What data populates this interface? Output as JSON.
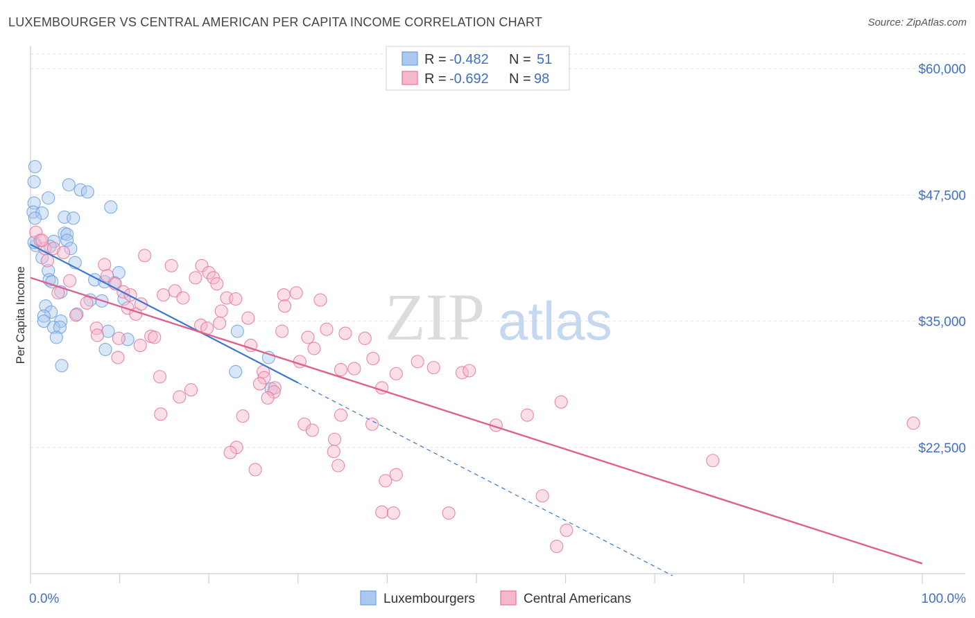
{
  "header": {
    "title": "LUXEMBOURGER VS CENTRAL AMERICAN PER CAPITA INCOME CORRELATION CHART",
    "source": "Source: ZipAtlas.com"
  },
  "watermark": {
    "zip": "ZIP",
    "atlas": "atlas"
  },
  "legend": {
    "rows": [
      {
        "r_label": "R = ",
        "r_value": "-0.482",
        "n_label": "N = ",
        "n_value": "51",
        "color": "#aac8f0"
      },
      {
        "r_label": "R = ",
        "r_value": "-0.692",
        "n_label": "N = ",
        "n_value": "98",
        "color": "#f7b8cc"
      }
    ]
  },
  "chart_data": {
    "type": "scatter",
    "title": "LUXEMBOURGER VS CENTRAL AMERICAN PER CAPITA INCOME CORRELATION CHART",
    "xlabel": "",
    "ylabel": "Per Capita Income",
    "xlim": [
      0,
      100
    ],
    "ylim": [
      10000,
      62000
    ],
    "x_tick_labels": [
      "0.0%",
      "100.0%"
    ],
    "y_ticks": [
      22500,
      35000,
      47500,
      60000
    ],
    "y_tick_labels": [
      "$22,500",
      "$35,000",
      "$47,500",
      "$60,000"
    ],
    "grid": true,
    "legend_placement": "top-center",
    "series": [
      {
        "name": "Luxembourgers",
        "color": "#6a9fe0",
        "fill": "#aac8f0",
        "trend": {
          "x0": 0,
          "y0": 42600,
          "x1": 30,
          "y1": 28900,
          "dash_to_x": 72,
          "dash_to_y": 9800
        },
        "points": [
          [
            0.5,
            50300
          ],
          [
            0.4,
            48800
          ],
          [
            4.3,
            48500
          ],
          [
            5.6,
            48000
          ],
          [
            6.4,
            47800
          ],
          [
            2.0,
            47200
          ],
          [
            0.4,
            46700
          ],
          [
            9.0,
            46300
          ],
          [
            0.3,
            45800
          ],
          [
            1.3,
            45700
          ],
          [
            0.5,
            45200
          ],
          [
            3.8,
            45300
          ],
          [
            4.8,
            45200
          ],
          [
            3.8,
            43700
          ],
          [
            4.1,
            43600
          ],
          [
            2.6,
            42900
          ],
          [
            0.6,
            42500
          ],
          [
            4.1,
            43000
          ],
          [
            4.5,
            42200
          ],
          [
            1.3,
            41300
          ],
          [
            5.0,
            40800
          ],
          [
            9.9,
            39800
          ],
          [
            2.0,
            40000
          ],
          [
            7.2,
            39100
          ],
          [
            2.1,
            39100
          ],
          [
            2.4,
            38900
          ],
          [
            8.3,
            38900
          ],
          [
            9.4,
            38800
          ],
          [
            3.4,
            37900
          ],
          [
            10.5,
            37200
          ],
          [
            6.7,
            37100
          ],
          [
            8.0,
            37000
          ],
          [
            1.7,
            36500
          ],
          [
            2.3,
            35900
          ],
          [
            5.2,
            35700
          ],
          [
            1.5,
            35500
          ],
          [
            3.4,
            35000
          ],
          [
            1.5,
            35000
          ],
          [
            2.6,
            34400
          ],
          [
            3.3,
            34400
          ],
          [
            8.7,
            34000
          ],
          [
            23.2,
            34000
          ],
          [
            2.9,
            33400
          ],
          [
            10.9,
            33200
          ],
          [
            8.4,
            32200
          ],
          [
            26.7,
            31400
          ],
          [
            3.5,
            30600
          ],
          [
            23.0,
            30000
          ],
          [
            27.0,
            28300
          ],
          [
            0.4,
            42800
          ],
          [
            2.2,
            42400
          ]
        ]
      },
      {
        "name": "Central Americans",
        "color": "#e8729a",
        "fill": "#f7b8cc",
        "trend": {
          "x0": 0,
          "y0": 39300,
          "x1": 100,
          "y1": 11000
        },
        "points": [
          [
            0.6,
            43800
          ],
          [
            1.6,
            42200
          ],
          [
            1.1,
            43000
          ],
          [
            2.6,
            42200
          ],
          [
            3.7,
            41800
          ],
          [
            1.9,
            41000
          ],
          [
            4.4,
            39000
          ],
          [
            3.1,
            37800
          ],
          [
            8.3,
            40600
          ],
          [
            12.8,
            41500
          ],
          [
            15.8,
            40500
          ],
          [
            18.5,
            39300
          ],
          [
            19.2,
            40500
          ],
          [
            20.0,
            39800
          ],
          [
            20.5,
            39300
          ],
          [
            20.9,
            38700
          ],
          [
            8.6,
            39500
          ],
          [
            9.5,
            38700
          ],
          [
            10.4,
            37900
          ],
          [
            11.2,
            37600
          ],
          [
            14.9,
            37600
          ],
          [
            16.2,
            38000
          ],
          [
            17.1,
            37300
          ],
          [
            22.0,
            37300
          ],
          [
            23.0,
            37200
          ],
          [
            28.4,
            37600
          ],
          [
            28.5,
            36500
          ],
          [
            29.8,
            37800
          ],
          [
            32.5,
            37100
          ],
          [
            12.4,
            36700
          ],
          [
            6.3,
            36800
          ],
          [
            10.9,
            36300
          ],
          [
            11.8,
            35700
          ],
          [
            5.1,
            35600
          ],
          [
            21.4,
            36000
          ],
          [
            24.4,
            35300
          ],
          [
            7.4,
            34300
          ],
          [
            19.1,
            34600
          ],
          [
            19.8,
            34300
          ],
          [
            21.2,
            34800
          ],
          [
            28.2,
            34000
          ],
          [
            33.2,
            34200
          ],
          [
            35.3,
            33800
          ],
          [
            31.1,
            33400
          ],
          [
            37.5,
            33300
          ],
          [
            7.5,
            33600
          ],
          [
            13.5,
            33500
          ],
          [
            13.9,
            33400
          ],
          [
            9.9,
            33300
          ],
          [
            12.3,
            32600
          ],
          [
            24.7,
            32600
          ],
          [
            31.8,
            32300
          ],
          [
            9.8,
            31400
          ],
          [
            30.2,
            31000
          ],
          [
            38.4,
            31300
          ],
          [
            43.4,
            31000
          ],
          [
            34.8,
            30200
          ],
          [
            36.3,
            30300
          ],
          [
            41.0,
            29800
          ],
          [
            45.2,
            30400
          ],
          [
            48.4,
            29900
          ],
          [
            49.2,
            30100
          ],
          [
            14.5,
            29500
          ],
          [
            26.1,
            30000
          ],
          [
            26.2,
            29400
          ],
          [
            25.7,
            28800
          ],
          [
            27.4,
            28400
          ],
          [
            27.3,
            28000
          ],
          [
            39.4,
            28400
          ],
          [
            18.0,
            28200
          ],
          [
            16.7,
            27500
          ],
          [
            26.6,
            27400
          ],
          [
            59.5,
            27000
          ],
          [
            14.6,
            25800
          ],
          [
            23.8,
            25600
          ],
          [
            34.8,
            25700
          ],
          [
            55.7,
            25700
          ],
          [
            30.7,
            24800
          ],
          [
            31.6,
            24200
          ],
          [
            38.3,
            24800
          ],
          [
            52.2,
            24700
          ],
          [
            99.0,
            24900
          ],
          [
            34.1,
            23300
          ],
          [
            23.1,
            22500
          ],
          [
            22.4,
            22000
          ],
          [
            34.0,
            22100
          ],
          [
            76.5,
            21200
          ],
          [
            34.5,
            20700
          ],
          [
            25.2,
            20300
          ],
          [
            41.0,
            19800
          ],
          [
            39.8,
            19200
          ],
          [
            57.4,
            17700
          ],
          [
            39.4,
            16100
          ],
          [
            40.7,
            16000
          ],
          [
            46.9,
            16000
          ],
          [
            60.1,
            14300
          ],
          [
            59.0,
            12700
          ],
          [
            1.3,
            43000
          ]
        ]
      }
    ]
  },
  "bottom_legend": {
    "items": [
      {
        "label": "Luxembourgers",
        "color": "#aac8f0",
        "stroke": "#6a9fe0"
      },
      {
        "label": "Central Americans",
        "color": "#f7b8cc",
        "stroke": "#e8729a"
      }
    ]
  }
}
